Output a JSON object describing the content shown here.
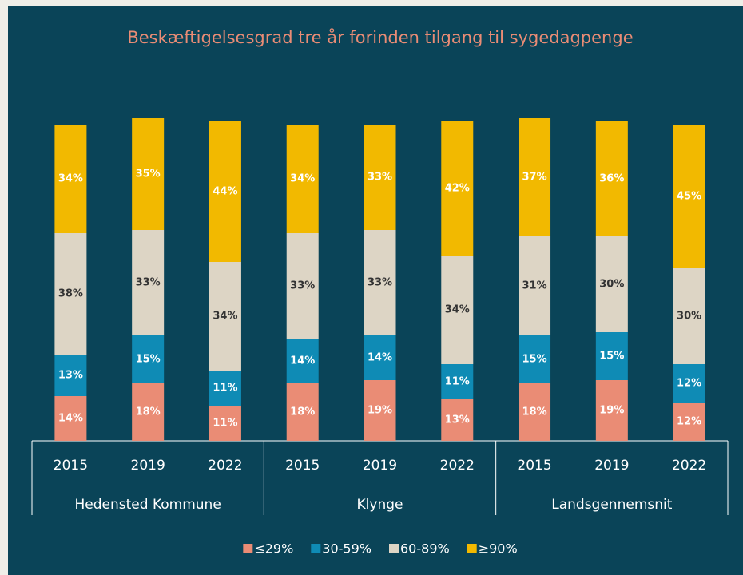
{
  "chart_data": {
    "type": "stacked-bar",
    "title": "Beskæftigelsesgrad tre år forinden tilgang til sygedagpenge",
    "groups": [
      {
        "name": "Hedensted Kommune",
        "categories": [
          "2015",
          "2019",
          "2022"
        ]
      },
      {
        "name": "Klynge",
        "categories": [
          "2015",
          "2019",
          "2022"
        ]
      },
      {
        "name": "Landsgennemsnit",
        "categories": [
          "2015",
          "2019",
          "2022"
        ]
      }
    ],
    "series": [
      {
        "name": "≤29%",
        "color": "#ea8c75",
        "label_color": "#ffffff",
        "values": [
          14,
          18,
          11,
          18,
          19,
          13,
          18,
          19,
          12
        ],
        "value_labels": [
          "14%",
          "18%",
          "11%",
          "18%",
          "19%",
          "13%",
          "18%",
          "19%",
          "12%"
        ]
      },
      {
        "name": "30-59%",
        "color": "#0f8bb5",
        "label_color": "#ffffff",
        "values": [
          13,
          15,
          11,
          14,
          14,
          11,
          15,
          15,
          12
        ],
        "value_labels": [
          "13%",
          "15%",
          "11%",
          "14%",
          "14%",
          "11%",
          "15%",
          "15%",
          "12%"
        ]
      },
      {
        "name": "60-89%",
        "color": "#ddd5c5",
        "label_color": "#333333",
        "values": [
          38,
          33,
          34,
          33,
          33,
          34,
          31,
          30,
          30
        ],
        "value_labels": [
          "38%",
          "33%",
          "34%",
          "33%",
          "33%",
          "34%",
          "31%",
          "30%",
          "30%"
        ]
      },
      {
        "name": "≥90%",
        "color": "#f2b900",
        "label_color": "#ffffff",
        "values": [
          34,
          35,
          44,
          34,
          33,
          42,
          37,
          36,
          45
        ],
        "value_labels": [
          "34%",
          "35%",
          "44%",
          "34%",
          "33%",
          "42%",
          "37%",
          "36%",
          "45%"
        ]
      }
    ]
  }
}
